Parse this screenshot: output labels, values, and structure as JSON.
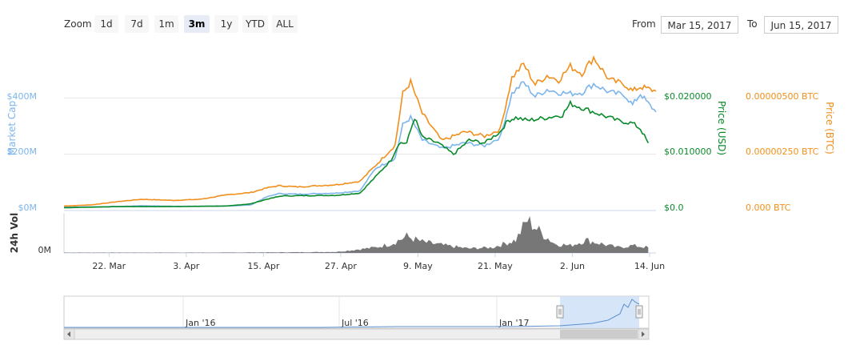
{
  "toolbar": {
    "zoom_label": "Zoom",
    "zoom_buttons": [
      "1d",
      "7d",
      "1m",
      "3m",
      "1y",
      "YTD",
      "ALL"
    ],
    "active_zoom": "3m",
    "from_label": "From",
    "from_value": "Mar 15, 2017",
    "to_label": "To",
    "to_value": "Jun 15, 2017"
  },
  "colors": {
    "market_cap": "#7cb5ec",
    "price_usd": "#0a8a2a",
    "price_btc": "#f28f1c",
    "volume": "#777777",
    "navigator_fill": "#cfe2f7"
  },
  "chart_data": {
    "type": "line",
    "x_start": "2017-03-15",
    "x_end": "2017-06-15",
    "x_ticks": [
      "22. Mar",
      "3. Apr",
      "15. Apr",
      "27. Apr",
      "9. May",
      "21. May",
      "2. Jun",
      "14. Jun"
    ],
    "y_axes": {
      "market_cap": {
        "title": "Market Cap",
        "ticks": [
          "$0M",
          "$200M",
          "$400M"
        ],
        "range": [
          0,
          600
        ]
      },
      "price_usd": {
        "title": "Price (USD)",
        "ticks": [
          "$0.0",
          "$0.010000",
          "$0.020000"
        ],
        "range": [
          0,
          0.03
        ]
      },
      "price_btc": {
        "title": "Price (BTC)",
        "ticks": [
          "0.000 BTC",
          "0.00000250 BTC",
          "0.00000500 BTC"
        ],
        "range": [
          0,
          7.5e-06
        ]
      },
      "volume": {
        "title": "24h Vol",
        "ticks": [
          "0M"
        ]
      }
    },
    "series": [
      {
        "name": "Market Cap",
        "axis": "market_cap",
        "unit": "$M",
        "values": [
          [
            0,
            12
          ],
          [
            7,
            13
          ],
          [
            14,
            14
          ],
          [
            20,
            17
          ],
          [
            28,
            15
          ],
          [
            35,
            15
          ],
          [
            42,
            16
          ],
          [
            48,
            20
          ],
          [
            52,
            48
          ],
          [
            55,
            60
          ],
          [
            60,
            58
          ],
          [
            70,
            62
          ],
          [
            76,
            70
          ],
          [
            80,
            150
          ],
          [
            85,
            185
          ],
          [
            87,
            305
          ],
          [
            89,
            330
          ],
          [
            92,
            250
          ],
          [
            97,
            220
          ],
          [
            103,
            240
          ],
          [
            108,
            230
          ],
          [
            112,
            260
          ],
          [
            115,
            415
          ],
          [
            118,
            455
          ],
          [
            121,
            405
          ],
          [
            124,
            430
          ],
          [
            127,
            420
          ],
          [
            130,
            415
          ],
          [
            133,
            420
          ],
          [
            136,
            450
          ],
          [
            140,
            420
          ],
          [
            144,
            410
          ],
          [
            146,
            375
          ],
          [
            148,
            415
          ],
          [
            150,
            380
          ],
          [
            152,
            350
          ]
        ]
      },
      {
        "name": "Price (USD)",
        "axis": "price_usd",
        "unit": "USD",
        "values": [
          [
            0,
            0.0005
          ],
          [
            14,
            0.0007
          ],
          [
            28,
            0.0007
          ],
          [
            42,
            0.0008
          ],
          [
            48,
            0.0012
          ],
          [
            52,
            0.002
          ],
          [
            56,
            0.0026
          ],
          [
            70,
            0.0027
          ],
          [
            76,
            0.0031
          ],
          [
            80,
            0.006
          ],
          [
            84,
            0.009
          ],
          [
            86,
            0.012
          ],
          [
            88,
            0.012
          ],
          [
            90,
            0.0165
          ],
          [
            92,
            0.013
          ],
          [
            96,
            0.012
          ],
          [
            100,
            0.01
          ],
          [
            104,
            0.0125
          ],
          [
            108,
            0.012
          ],
          [
            112,
            0.014
          ],
          [
            114,
            0.016
          ],
          [
            116,
            0.0165
          ],
          [
            119,
            0.016
          ],
          [
            124,
            0.0165
          ],
          [
            128,
            0.017
          ],
          [
            130,
            0.019
          ],
          [
            134,
            0.018
          ],
          [
            138,
            0.017
          ],
          [
            142,
            0.016
          ],
          [
            146,
            0.0155
          ],
          [
            148,
            0.0145
          ],
          [
            150,
            0.012
          ]
        ]
      },
      {
        "name": "Price (BTC)",
        "axis": "price_btc",
        "unit": "BTC",
        "values": [
          [
            0,
            2e-07
          ],
          [
            7,
            2.5e-07
          ],
          [
            14,
            4e-07
          ],
          [
            20,
            5e-07
          ],
          [
            28,
            4.5e-07
          ],
          [
            35,
            5e-07
          ],
          [
            42,
            7e-07
          ],
          [
            48,
            8e-07
          ],
          [
            52,
            1e-06
          ],
          [
            55,
            1.1e-06
          ],
          [
            60,
            1.05e-06
          ],
          [
            70,
            1.15e-06
          ],
          [
            76,
            1.3e-06
          ],
          [
            80,
            2e-06
          ],
          [
            85,
            2.9e-06
          ],
          [
            87,
            5.2e-06
          ],
          [
            89,
            5.7e-06
          ],
          [
            92,
            4.3e-06
          ],
          [
            97,
            3.1e-06
          ],
          [
            103,
            3.5e-06
          ],
          [
            108,
            3.3e-06
          ],
          [
            112,
            3.6e-06
          ],
          [
            115,
            5.9e-06
          ],
          [
            118,
            6.5e-06
          ],
          [
            121,
            5.6e-06
          ],
          [
            124,
            6e-06
          ],
          [
            127,
            5.8e-06
          ],
          [
            130,
            6.4e-06
          ],
          [
            133,
            6.1e-06
          ],
          [
            136,
            6.8e-06
          ],
          [
            140,
            5.8e-06
          ],
          [
            144,
            5.6e-06
          ],
          [
            146,
            5.3e-06
          ],
          [
            148,
            5.5e-06
          ],
          [
            150,
            5.4e-06
          ],
          [
            152,
            5.3e-06
          ]
        ]
      },
      {
        "name": "24h Vol",
        "axis": "volume",
        "unit": "relative",
        "values": [
          [
            0,
            0.01
          ],
          [
            40,
            0.01
          ],
          [
            60,
            0.02
          ],
          [
            70,
            0.03
          ],
          [
            80,
            0.15
          ],
          [
            84,
            0.25
          ],
          [
            88,
            0.45
          ],
          [
            92,
            0.3
          ],
          [
            98,
            0.2
          ],
          [
            104,
            0.12
          ],
          [
            110,
            0.15
          ],
          [
            116,
            0.35
          ],
          [
            119,
            0.9
          ],
          [
            122,
            0.6
          ],
          [
            126,
            0.25
          ],
          [
            130,
            0.2
          ],
          [
            134,
            0.35
          ],
          [
            138,
            0.25
          ],
          [
            142,
            0.15
          ],
          [
            146,
            0.2
          ],
          [
            150,
            0.15
          ]
        ]
      }
    ],
    "grid": true,
    "legend": "none"
  },
  "navigator": {
    "labels": [
      "Jan '16",
      "Jul '16",
      "Jan '17"
    ],
    "selection": {
      "from": "Mar 15, 2017",
      "to": "Jun 15, 2017"
    }
  }
}
